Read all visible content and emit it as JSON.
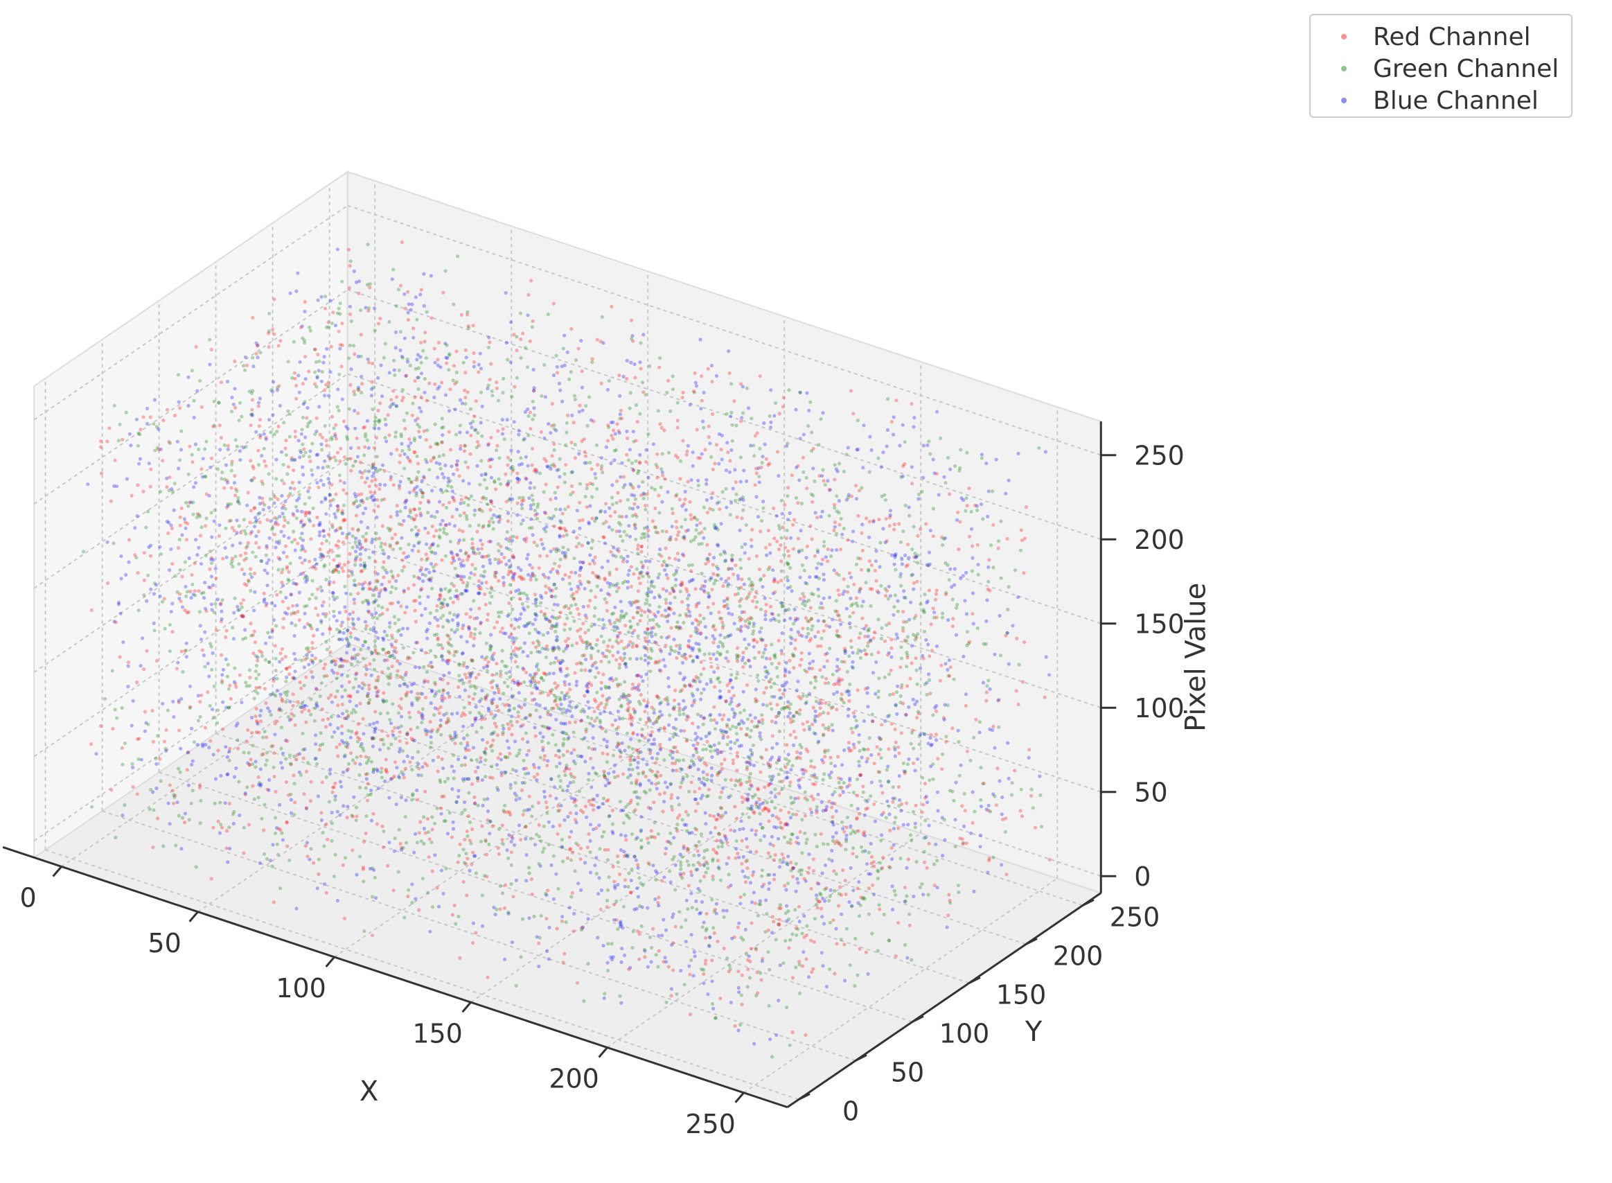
{
  "chart_data": {
    "type": "scatter",
    "projection": "3d",
    "xlabel": "X",
    "ylabel": "Y",
    "zlabel": "Pixel Value",
    "xlim": [
      -10,
      266
    ],
    "ylim": [
      -10,
      266
    ],
    "zlim": [
      -10,
      270
    ],
    "x_ticks": [
      "0",
      "50",
      "100",
      "150",
      "200",
      "250"
    ],
    "y_ticks": [
      "0",
      "50",
      "100",
      "150",
      "200",
      "250"
    ],
    "z_ticks": [
      "0",
      "50",
      "100",
      "150",
      "200",
      "250"
    ],
    "grid": true,
    "legend_position": "top-right",
    "series": [
      {
        "name": "Red Channel",
        "color": "#ff0000",
        "alpha": 0.3,
        "distribution": "random uniform",
        "x_range": [
          0,
          255
        ],
        "y_range": [
          0,
          255
        ],
        "z_range": [
          0,
          255
        ]
      },
      {
        "name": "Green Channel",
        "color": "#008000",
        "alpha": 0.3,
        "distribution": "random uniform",
        "x_range": [
          0,
          255
        ],
        "y_range": [
          0,
          255
        ],
        "z_range": [
          0,
          255
        ]
      },
      {
        "name": "Blue Channel",
        "color": "#0000ff",
        "alpha": 0.3,
        "distribution": "random uniform",
        "x_range": [
          0,
          255
        ],
        "y_range": [
          0,
          255
        ],
        "z_range": [
          0,
          255
        ]
      }
    ]
  }
}
